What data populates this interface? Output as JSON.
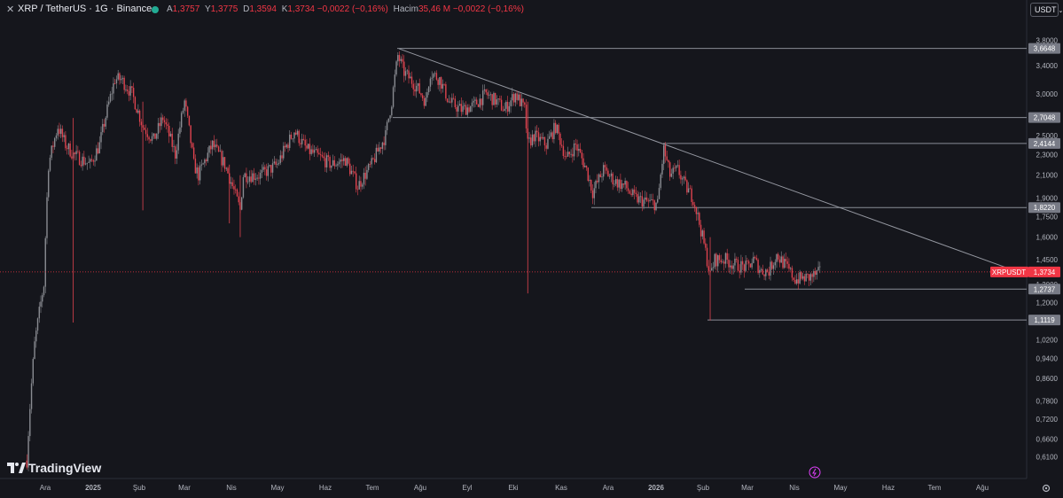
{
  "header": {
    "title": "XRP / TetherUS · 1G · Binance",
    "open_label": "A",
    "open": "1,3757",
    "high_label": "Y",
    "high": "1,3775",
    "low_label": "D",
    "low": "1,3594",
    "close_label": "K",
    "close": "1,3734",
    "change": "−0,0022 (−0,16%)",
    "volume_label": "Hacim",
    "volume": "35,46 M",
    "volume_change": "−0,0022 (−0,16%)",
    "currency": "USDT"
  },
  "brand": "TradingView",
  "colors": {
    "up": "#22ab94",
    "down": "#f23645",
    "bg": "#15161c",
    "line": "#b2b5be"
  },
  "chart_data": {
    "type": "candlestick",
    "symbol": "XRPUSDT",
    "last_price": "1,3734",
    "y_scale": "log",
    "y_ticks": [
      "3,8000",
      "3,4000",
      "3,0000",
      "2,5000",
      "2,3000",
      "2,1000",
      "1,9000",
      "1,7500",
      "1,6000",
      "1,4500",
      "1,3000",
      "1,2000",
      "1,0200",
      "0,9400",
      "0,8600",
      "0,7800",
      "0,7200",
      "0,6600",
      "0,6100"
    ],
    "x_ticks": [
      "Ara",
      "2025",
      "Şub",
      "Mar",
      "Nis",
      "May",
      "Haz",
      "Tem",
      "Ağu",
      "Eyl",
      "Eki",
      "Kas",
      "Ara",
      "2026",
      "Şub",
      "Mar",
      "Nis",
      "May",
      "Haz",
      "Tem",
      "Ağu"
    ],
    "horizontal_levels": [
      "3,6648",
      "2,7048",
      "2,4144",
      "1,8220",
      "1,2737",
      "1,1119"
    ],
    "trendline": {
      "from": [
        "Temmuz 2025",
        3.66
      ],
      "to": [
        "Mayıs 2026",
        1.39
      ]
    },
    "close_path": [
      [
        "2024-11-20",
        0.6
      ],
      [
        "2024-11-25",
        1.0
      ],
      [
        "2024-12-01",
        1.3
      ],
      [
        "2024-12-04",
        2.2
      ],
      [
        "2024-12-10",
        2.6
      ],
      [
        "2024-12-15",
        2.4
      ],
      [
        "2024-12-20",
        2.3
      ],
      [
        "2024-12-31",
        2.2
      ],
      [
        "2025-01-06",
        2.4
      ],
      [
        "2025-01-16",
        3.2
      ],
      [
        "2025-01-20",
        3.2
      ],
      [
        "2025-01-27",
        3.0
      ],
      [
        "2025-02-03",
        2.6
      ],
      [
        "2025-02-10",
        2.45
      ],
      [
        "2025-02-16",
        2.7
      ],
      [
        "2025-02-24",
        2.3
      ],
      [
        "2025-03-02",
        2.9
      ],
      [
        "2025-03-08",
        2.2
      ],
      [
        "2025-03-11",
        2.1
      ],
      [
        "2025-03-20",
        2.4
      ],
      [
        "2025-03-28",
        2.2
      ],
      [
        "2025-04-07",
        1.8
      ],
      [
        "2025-04-09",
        2.1
      ],
      [
        "2025-04-20",
        2.1
      ],
      [
        "2025-05-01",
        2.2
      ],
      [
        "2025-05-12",
        2.55
      ],
      [
        "2025-05-20",
        2.35
      ],
      [
        "2025-06-05",
        2.2
      ],
      [
        "2025-06-14",
        2.25
      ],
      [
        "2025-06-22",
        2.0
      ],
      [
        "2025-07-01",
        2.2
      ],
      [
        "2025-07-10",
        2.5
      ],
      [
        "2025-07-14",
        2.9
      ],
      [
        "2025-07-18",
        3.55
      ],
      [
        "2025-07-22",
        3.3
      ],
      [
        "2025-07-30",
        3.1
      ],
      [
        "2025-08-05",
        2.9
      ],
      [
        "2025-08-08",
        3.3
      ],
      [
        "2025-08-14",
        3.2
      ],
      [
        "2025-08-20",
        2.9
      ],
      [
        "2025-08-28",
        2.8
      ],
      [
        "2025-09-05",
        2.85
      ],
      [
        "2025-09-13",
        3.0
      ],
      [
        "2025-09-20",
        2.9
      ],
      [
        "2025-09-25",
        2.8
      ],
      [
        "2025-10-02",
        3.0
      ],
      [
        "2025-10-08",
        2.8
      ],
      [
        "2025-10-10",
        2.4
      ],
      [
        "2025-10-14",
        2.5
      ],
      [
        "2025-10-22",
        2.4
      ],
      [
        "2025-10-28",
        2.6
      ],
      [
        "2025-11-04",
        2.25
      ],
      [
        "2025-11-10",
        2.4
      ],
      [
        "2025-11-17",
        2.15
      ],
      [
        "2025-11-21",
        1.95
      ],
      [
        "2025-11-28",
        2.15
      ],
      [
        "2025-12-05",
        2.05
      ],
      [
        "2025-12-12",
        2.0
      ],
      [
        "2025-12-18",
        1.9
      ],
      [
        "2025-12-25",
        1.87
      ],
      [
        "2026-01-02",
        1.85
      ],
      [
        "2026-01-06",
        2.35
      ],
      [
        "2026-01-10",
        2.1
      ],
      [
        "2026-01-15",
        2.15
      ],
      [
        "2026-01-20",
        2.0
      ],
      [
        "2026-01-25",
        1.9
      ],
      [
        "2026-01-31",
        1.6
      ],
      [
        "2026-02-05",
        1.35
      ],
      [
        "2026-02-08",
        1.45
      ],
      [
        "2026-02-15",
        1.45
      ],
      [
        "2026-02-20",
        1.42
      ],
      [
        "2026-03-01",
        1.4
      ],
      [
        "2026-03-05",
        1.45
      ],
      [
        "2026-03-10",
        1.38
      ],
      [
        "2026-03-15",
        1.38
      ],
      [
        "2026-03-20",
        1.48
      ],
      [
        "2026-03-25",
        1.42
      ],
      [
        "2026-04-01",
        1.33
      ],
      [
        "2026-04-10",
        1.34
      ],
      [
        "2026-04-18",
        1.3734
      ]
    ],
    "wick_spikes": [
      [
        "2024-12-20",
        1.1,
        2.7
      ],
      [
        "2025-02-03",
        1.8,
        2.9
      ],
      [
        "2025-03-31",
        1.7,
        2.2
      ],
      [
        "2025-04-07",
        1.6,
        2.1
      ],
      [
        "2025-10-10",
        1.25,
        2.9
      ],
      [
        "2026-02-05",
        1.11,
        1.6
      ]
    ]
  }
}
